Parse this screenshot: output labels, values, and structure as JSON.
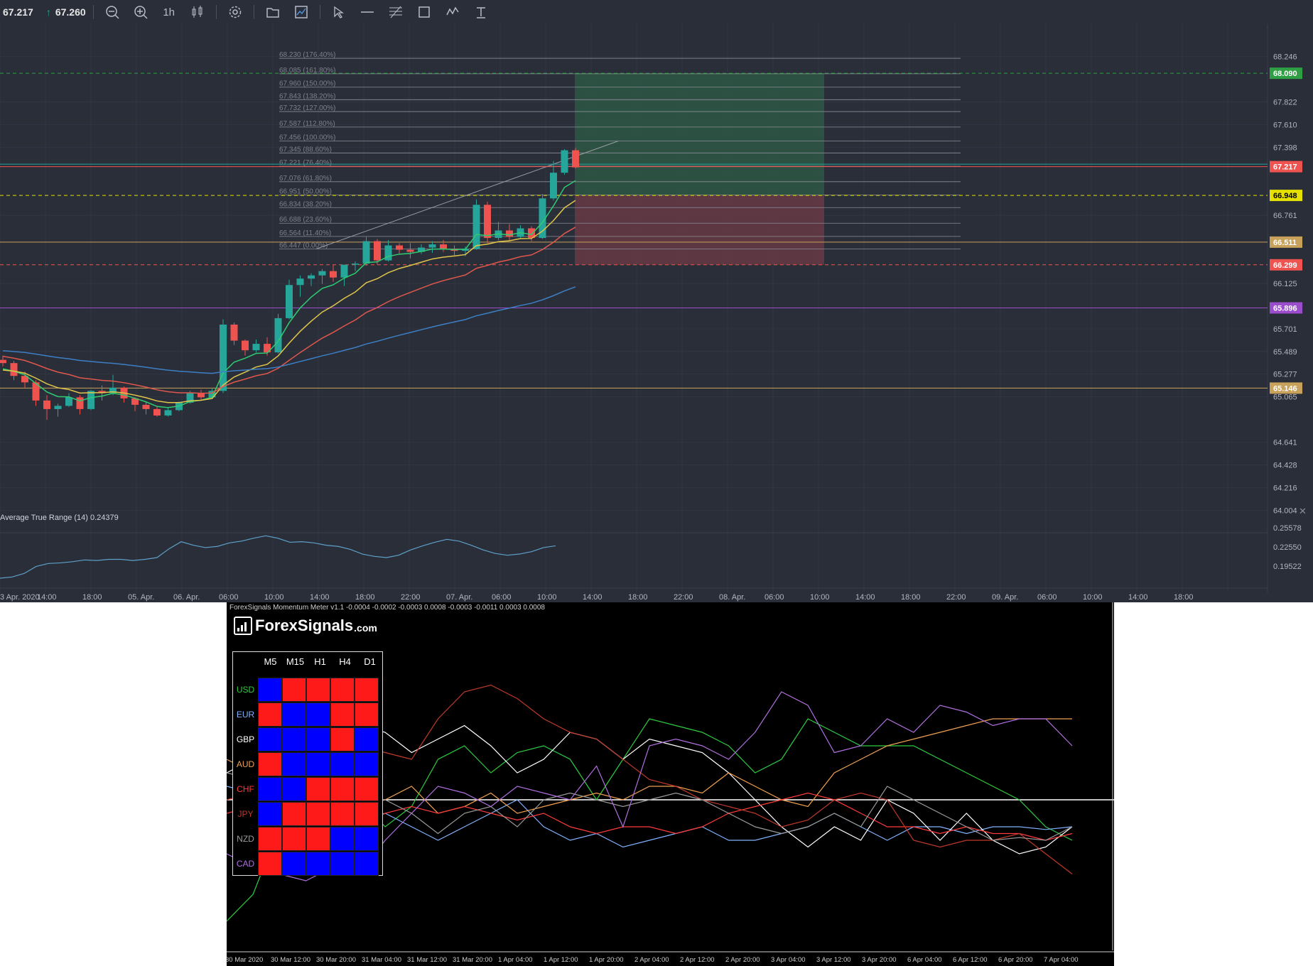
{
  "toolbar": {
    "bid": "67.217",
    "ask": "67.260",
    "interval": "1h",
    "icons": [
      "zoom-out-icon",
      "zoom-in-icon",
      "candles-icon",
      "settings-icon",
      "folder-icon",
      "chart-window-icon",
      "cursor-icon",
      "horizontal-line-icon",
      "fibonacci-icon",
      "rectangle-icon",
      "brush-icon",
      "text-icon"
    ]
  },
  "colors": {
    "bg": "#2a2e39",
    "up": "#26a69a",
    "down": "#ef5350",
    "grid": "#363a45"
  },
  "price_axis": {
    "ticks": [
      "68.246",
      "67.822",
      "67.610",
      "67.398",
      "66.761",
      "66.125",
      "65.701",
      "65.489",
      "65.277",
      "65.065",
      "64.641",
      "64.428",
      "64.216",
      "64.004"
    ],
    "badges": [
      {
        "label": "68.090",
        "color": "#2ea043"
      },
      {
        "label": "67.217",
        "color": "#ef5350"
      },
      {
        "label": "66.948",
        "color": "#e5e000",
        "text": "#000"
      },
      {
        "label": "66.511",
        "color": "#c8a25a"
      },
      {
        "label": "66.299",
        "color": "#ef5350"
      },
      {
        "label": "65.896",
        "color": "#9c4dcc"
      },
      {
        "label": "65.146",
        "color": "#c8a25a"
      }
    ]
  },
  "fib_levels": [
    "68.230 (176.40%)",
    "68.085 (161.80%)",
    "67.960 (150.00%)",
    "67.843 (138.20%)",
    "67.732 (127.00%)",
    "67.587 (112.80%)",
    "67.456 (100.00%)",
    "67.345 (88.60%)",
    "67.221 (76.40%)",
    "67.076 (61.80%)",
    "66.951 (50.00%)",
    "66.834 (38.20%)",
    "66.688 (23.60%)",
    "66.564 (11.40%)",
    "66.447 (0.00%)"
  ],
  "chart_data": {
    "type": "candlestick",
    "symbol_price": 67.217,
    "ylim": [
      63.9,
      68.35
    ],
    "candles": [
      [
        65.41,
        65.45,
        65.35,
        65.38
      ],
      [
        65.38,
        65.4,
        65.22,
        65.26
      ],
      [
        65.26,
        65.3,
        65.15,
        65.2
      ],
      [
        65.2,
        65.22,
        64.98,
        65.03
      ],
      [
        65.03,
        65.08,
        64.85,
        64.95
      ],
      [
        64.95,
        65.0,
        64.88,
        64.98
      ],
      [
        64.98,
        65.1,
        64.97,
        65.06
      ],
      [
        65.06,
        65.08,
        64.9,
        64.95
      ],
      [
        64.95,
        65.13,
        64.94,
        65.12
      ],
      [
        65.12,
        65.17,
        65.03,
        65.1
      ],
      [
        65.1,
        65.27,
        65.08,
        65.15
      ],
      [
        65.15,
        65.16,
        65.01,
        65.05
      ],
      [
        65.05,
        65.06,
        64.93,
        64.99
      ],
      [
        64.99,
        65.02,
        64.9,
        64.95
      ],
      [
        64.95,
        64.97,
        64.88,
        64.89
      ],
      [
        64.89,
        64.97,
        64.88,
        64.94
      ],
      [
        64.94,
        65.02,
        64.93,
        65.01
      ],
      [
        65.01,
        65.12,
        65.0,
        65.1
      ],
      [
        65.1,
        65.13,
        65.04,
        65.06
      ],
      [
        65.06,
        65.14,
        65.05,
        65.12
      ],
      [
        65.12,
        65.79,
        65.1,
        65.74
      ],
      [
        65.74,
        65.76,
        65.55,
        65.59
      ],
      [
        65.59,
        65.6,
        65.45,
        65.5
      ],
      [
        65.5,
        65.6,
        65.48,
        65.56
      ],
      [
        65.56,
        65.62,
        65.45,
        65.48
      ],
      [
        65.48,
        65.84,
        65.47,
        65.8
      ],
      [
        65.8,
        66.16,
        65.79,
        66.11
      ],
      [
        66.11,
        66.2,
        66.0,
        66.17
      ],
      [
        66.17,
        66.22,
        66.1,
        66.2
      ],
      [
        66.2,
        66.26,
        66.12,
        66.24
      ],
      [
        66.24,
        66.3,
        66.14,
        66.18
      ],
      [
        66.18,
        66.3,
        66.1,
        66.3
      ],
      [
        66.3,
        66.33,
        66.24,
        66.31
      ],
      [
        66.31,
        66.56,
        66.29,
        66.52
      ],
      [
        66.52,
        66.54,
        66.3,
        66.34
      ],
      [
        66.34,
        66.53,
        66.33,
        66.48
      ],
      [
        66.48,
        66.5,
        66.4,
        66.44
      ],
      [
        66.44,
        66.5,
        66.36,
        66.42
      ],
      [
        66.42,
        66.49,
        66.4,
        66.46
      ],
      [
        66.46,
        66.52,
        66.41,
        66.49
      ],
      [
        66.49,
        66.53,
        66.42,
        66.45
      ],
      [
        66.45,
        66.48,
        66.39,
        66.43
      ],
      [
        66.43,
        66.47,
        66.38,
        66.45
      ],
      [
        66.45,
        66.91,
        66.44,
        66.86
      ],
      [
        66.86,
        66.89,
        66.5,
        66.55
      ],
      [
        66.55,
        66.7,
        66.53,
        66.62
      ],
      [
        66.62,
        66.68,
        66.52,
        66.56
      ],
      [
        66.56,
        66.67,
        66.54,
        66.64
      ],
      [
        66.64,
        66.66,
        66.52,
        66.55
      ],
      [
        66.55,
        66.96,
        66.54,
        66.92
      ],
      [
        66.92,
        67.27,
        66.9,
        67.16
      ],
      [
        67.16,
        67.38,
        67.14,
        67.37
      ],
      [
        67.37,
        67.39,
        67.2,
        67.21
      ]
    ],
    "indicator": {
      "name": "Average True Range (14)",
      "value": "0.24379",
      "ticks": [
        "0.25578",
        "0.22550",
        "0.19522"
      ]
    },
    "time_axis": [
      "3 Apr. 2020",
      "14:00",
      "18:00",
      "05. Apr.",
      "06. Apr.",
      "06:00",
      "10:00",
      "14:00",
      "18:00",
      "22:00",
      "07. Apr.",
      "06:00",
      "10:00",
      "14:00",
      "18:00",
      "22:00",
      "08. Apr.",
      "06:00",
      "10:00",
      "14:00",
      "18:00",
      "22:00",
      "09. Apr.",
      "06:00",
      "10:00",
      "14:00",
      "18:00"
    ]
  },
  "momentum": {
    "title": "ForexSignals Momentum Meter v1.1 -0.0004 -0.0002 -0.0003 0.0008 -0.0003 -0.0011 0.0003 0.0008",
    "brand": "ForexSignals",
    "brand_suffix": ".com",
    "timeframes": [
      "M5",
      "M15",
      "H1",
      "H4",
      "D1"
    ],
    "rows": [
      {
        "ccy": "USD",
        "color": "#2ecc40",
        "cells": [
          "b",
          "r",
          "r",
          "r",
          "r"
        ]
      },
      {
        "ccy": "EUR",
        "color": "#7fb2ff",
        "cells": [
          "r",
          "b",
          "b",
          "r",
          "r"
        ]
      },
      {
        "ccy": "GBP",
        "color": "#ffffff",
        "cells": [
          "b",
          "b",
          "b",
          "r",
          "b"
        ]
      },
      {
        "ccy": "AUD",
        "color": "#f0a050",
        "cells": [
          "r",
          "b",
          "b",
          "b",
          "b"
        ]
      },
      {
        "ccy": "CHF",
        "color": "#ff3b3b",
        "cells": [
          "b",
          "b",
          "r",
          "r",
          "r"
        ]
      },
      {
        "ccy": "JPY",
        "color": "#c0392b",
        "cells": [
          "b",
          "r",
          "r",
          "r",
          "r"
        ]
      },
      {
        "ccy": "NZD",
        "color": "#9a9a9a",
        "cells": [
          "r",
          "r",
          "r",
          "b",
          "b"
        ]
      },
      {
        "ccy": "CAD",
        "color": "#b070e0",
        "cells": [
          "r",
          "b",
          "b",
          "b",
          "b"
        ]
      }
    ],
    "time_axis": [
      "30 Mar 2020",
      "30 Mar 12:00",
      "30 Mar 20:00",
      "31 Mar 04:00",
      "31 Mar 12:00",
      "31 Mar 20:00",
      "1 Apr 04:00",
      "1 Apr 12:00",
      "1 Apr 20:00",
      "2 Apr 04:00",
      "2 Apr 12:00",
      "2 Apr 20:00",
      "3 Apr 04:00",
      "3 Apr 12:00",
      "3 Apr 20:00",
      "6 Apr 04:00",
      "6 Apr 12:00",
      "6 Apr 20:00",
      "7 Apr 04:00"
    ],
    "series": [
      {
        "name": "USD",
        "color": "#2ecc40",
        "values": [
          -0.9,
          -0.7,
          -0.2,
          0.2,
          0.1,
          0.0,
          -0.2,
          -0.05,
          0.3,
          0.4,
          0.2,
          0.35,
          0.4,
          0.3,
          0.0,
          0.3,
          0.6,
          0.55,
          0.5,
          0.4,
          0.2,
          0.3,
          0.6,
          0.5,
          0.4,
          0.4,
          0.4,
          0.3,
          0.2,
          0.1,
          0.0,
          -0.2,
          -0.3
        ]
      },
      {
        "name": "EUR",
        "color": "#7fb2ff",
        "values": [
          0.1,
          0.05,
          0.0,
          -0.1,
          -0.2,
          -0.15,
          -0.1,
          -0.2,
          -0.3,
          -0.2,
          -0.1,
          0.0,
          -0.2,
          -0.3,
          -0.25,
          -0.35,
          -0.3,
          -0.25,
          -0.2,
          -0.3,
          -0.3,
          -0.25,
          -0.2,
          -0.1,
          -0.2,
          -0.3,
          -0.2,
          -0.2,
          -0.25,
          -0.2,
          -0.2,
          -0.22,
          -0.2
        ]
      },
      {
        "name": "GBP",
        "color": "#ffffff",
        "values": [
          0.2,
          0.3,
          0.5,
          0.9,
          0.8,
          0.55,
          0.5,
          0.35,
          0.45,
          0.55,
          0.4,
          0.2,
          0.3,
          0.5,
          0.45,
          0.3,
          0.45,
          0.4,
          0.35,
          0.2,
          0.0,
          -0.2,
          -0.35,
          -0.2,
          -0.3,
          0.0,
          -0.1,
          -0.3,
          -0.1,
          -0.3,
          -0.4,
          -0.35,
          -0.2
        ]
      },
      {
        "name": "AUD",
        "color": "#f0a050",
        "values": [
          0.3,
          0.2,
          0.1,
          0.0,
          0.05,
          -0.05,
          0.0,
          0.1,
          -0.1,
          -0.05,
          0.05,
          -0.1,
          -0.05,
          0.0,
          0.05,
          0.0,
          0.1,
          0.1,
          0.05,
          0.2,
          0.1,
          0.0,
          -0.05,
          0.2,
          0.3,
          0.4,
          0.45,
          0.5,
          0.55,
          0.6,
          0.6,
          0.6,
          0.6
        ]
      },
      {
        "name": "CHF",
        "color": "#ff3b3b",
        "values": [
          -0.1,
          -0.05,
          0.05,
          0.0,
          -0.1,
          -0.2,
          -0.1,
          -0.05,
          -0.1,
          -0.05,
          -0.1,
          -0.15,
          -0.1,
          -0.2,
          -0.25,
          -0.2,
          -0.2,
          -0.25,
          -0.2,
          -0.1,
          -0.05,
          0.0,
          0.05,
          0.0,
          -0.1,
          -0.2,
          -0.2,
          -0.25,
          -0.2,
          -0.25,
          -0.25,
          -0.3,
          -0.25
        ]
      },
      {
        "name": "JPY",
        "color": "#c0392b",
        "values": [
          0.0,
          0.05,
          0.35,
          0.2,
          0.6,
          0.4,
          0.35,
          0.3,
          0.6,
          0.8,
          0.85,
          0.75,
          0.6,
          0.5,
          0.45,
          0.3,
          0.15,
          0.1,
          0.0,
          -0.05,
          -0.1,
          -0.2,
          -0.15,
          0.0,
          0.05,
          0.0,
          -0.3,
          -0.35,
          -0.3,
          -0.3,
          -0.25,
          -0.4,
          -0.55
        ]
      },
      {
        "name": "NZD",
        "color": "#9a9a9a",
        "values": [
          0.2,
          0.15,
          0.05,
          0.1,
          -0.05,
          0.0,
          0.0,
          -0.1,
          -0.25,
          -0.1,
          -0.05,
          -0.2,
          0.0,
          0.05,
          0.0,
          -0.05,
          0.0,
          0.05,
          0.0,
          -0.1,
          -0.2,
          -0.25,
          -0.2,
          -0.1,
          -0.2,
          0.1,
          0.0,
          -0.1,
          -0.2,
          -0.3,
          -0.28,
          -0.3,
          -0.2
        ]
      },
      {
        "name": "CAD",
        "color": "#b070e0",
        "values": [
          -0.4,
          -0.5,
          -0.55,
          -0.6,
          -0.5,
          -0.55,
          -0.3,
          -0.1,
          0.1,
          0.05,
          -0.05,
          0.1,
          0.05,
          0.0,
          0.25,
          -0.2,
          0.4,
          0.45,
          0.4,
          0.3,
          0.5,
          0.8,
          0.7,
          0.35,
          0.4,
          0.6,
          0.5,
          0.7,
          0.65,
          0.55,
          0.6,
          0.6,
          0.4
        ]
      }
    ]
  }
}
